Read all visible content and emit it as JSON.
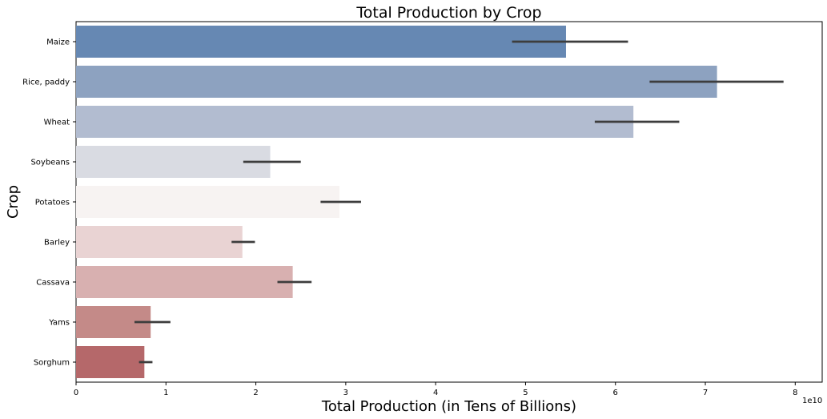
{
  "chart_data": {
    "type": "bar",
    "orientation": "horizontal",
    "title": "Total Production by Crop",
    "xlabel": "Total Production (in Tens of Billions)",
    "ylabel": "Crop",
    "x_offset_label": "1e10",
    "xlim": [
      0,
      8.3
    ],
    "x_ticks": [
      0,
      1,
      2,
      3,
      4,
      5,
      6,
      7,
      8
    ],
    "grid": false,
    "categories": [
      "Maize",
      "Rice, paddy",
      "Wheat",
      "Soybeans",
      "Potatoes",
      "Barley",
      "Cassava",
      "Yams",
      "Sorghum"
    ],
    "values": [
      5.45,
      7.13,
      6.2,
      2.16,
      2.93,
      1.85,
      2.41,
      0.83,
      0.76
    ],
    "error_low": [
      4.85,
      6.38,
      5.77,
      1.86,
      2.72,
      1.73,
      2.24,
      0.65,
      0.7
    ],
    "error_high": [
      6.14,
      7.87,
      6.71,
      2.5,
      3.17,
      1.99,
      2.62,
      1.05,
      0.85
    ],
    "colors": [
      "#6688b3",
      "#8da2c0",
      "#b2bcd0",
      "#d9dbe2",
      "#f7f3f2",
      "#e9d3d3",
      "#d8b0b0",
      "#c48a88",
      "#b5686a"
    ],
    "error_color": "#3d3d3d"
  }
}
